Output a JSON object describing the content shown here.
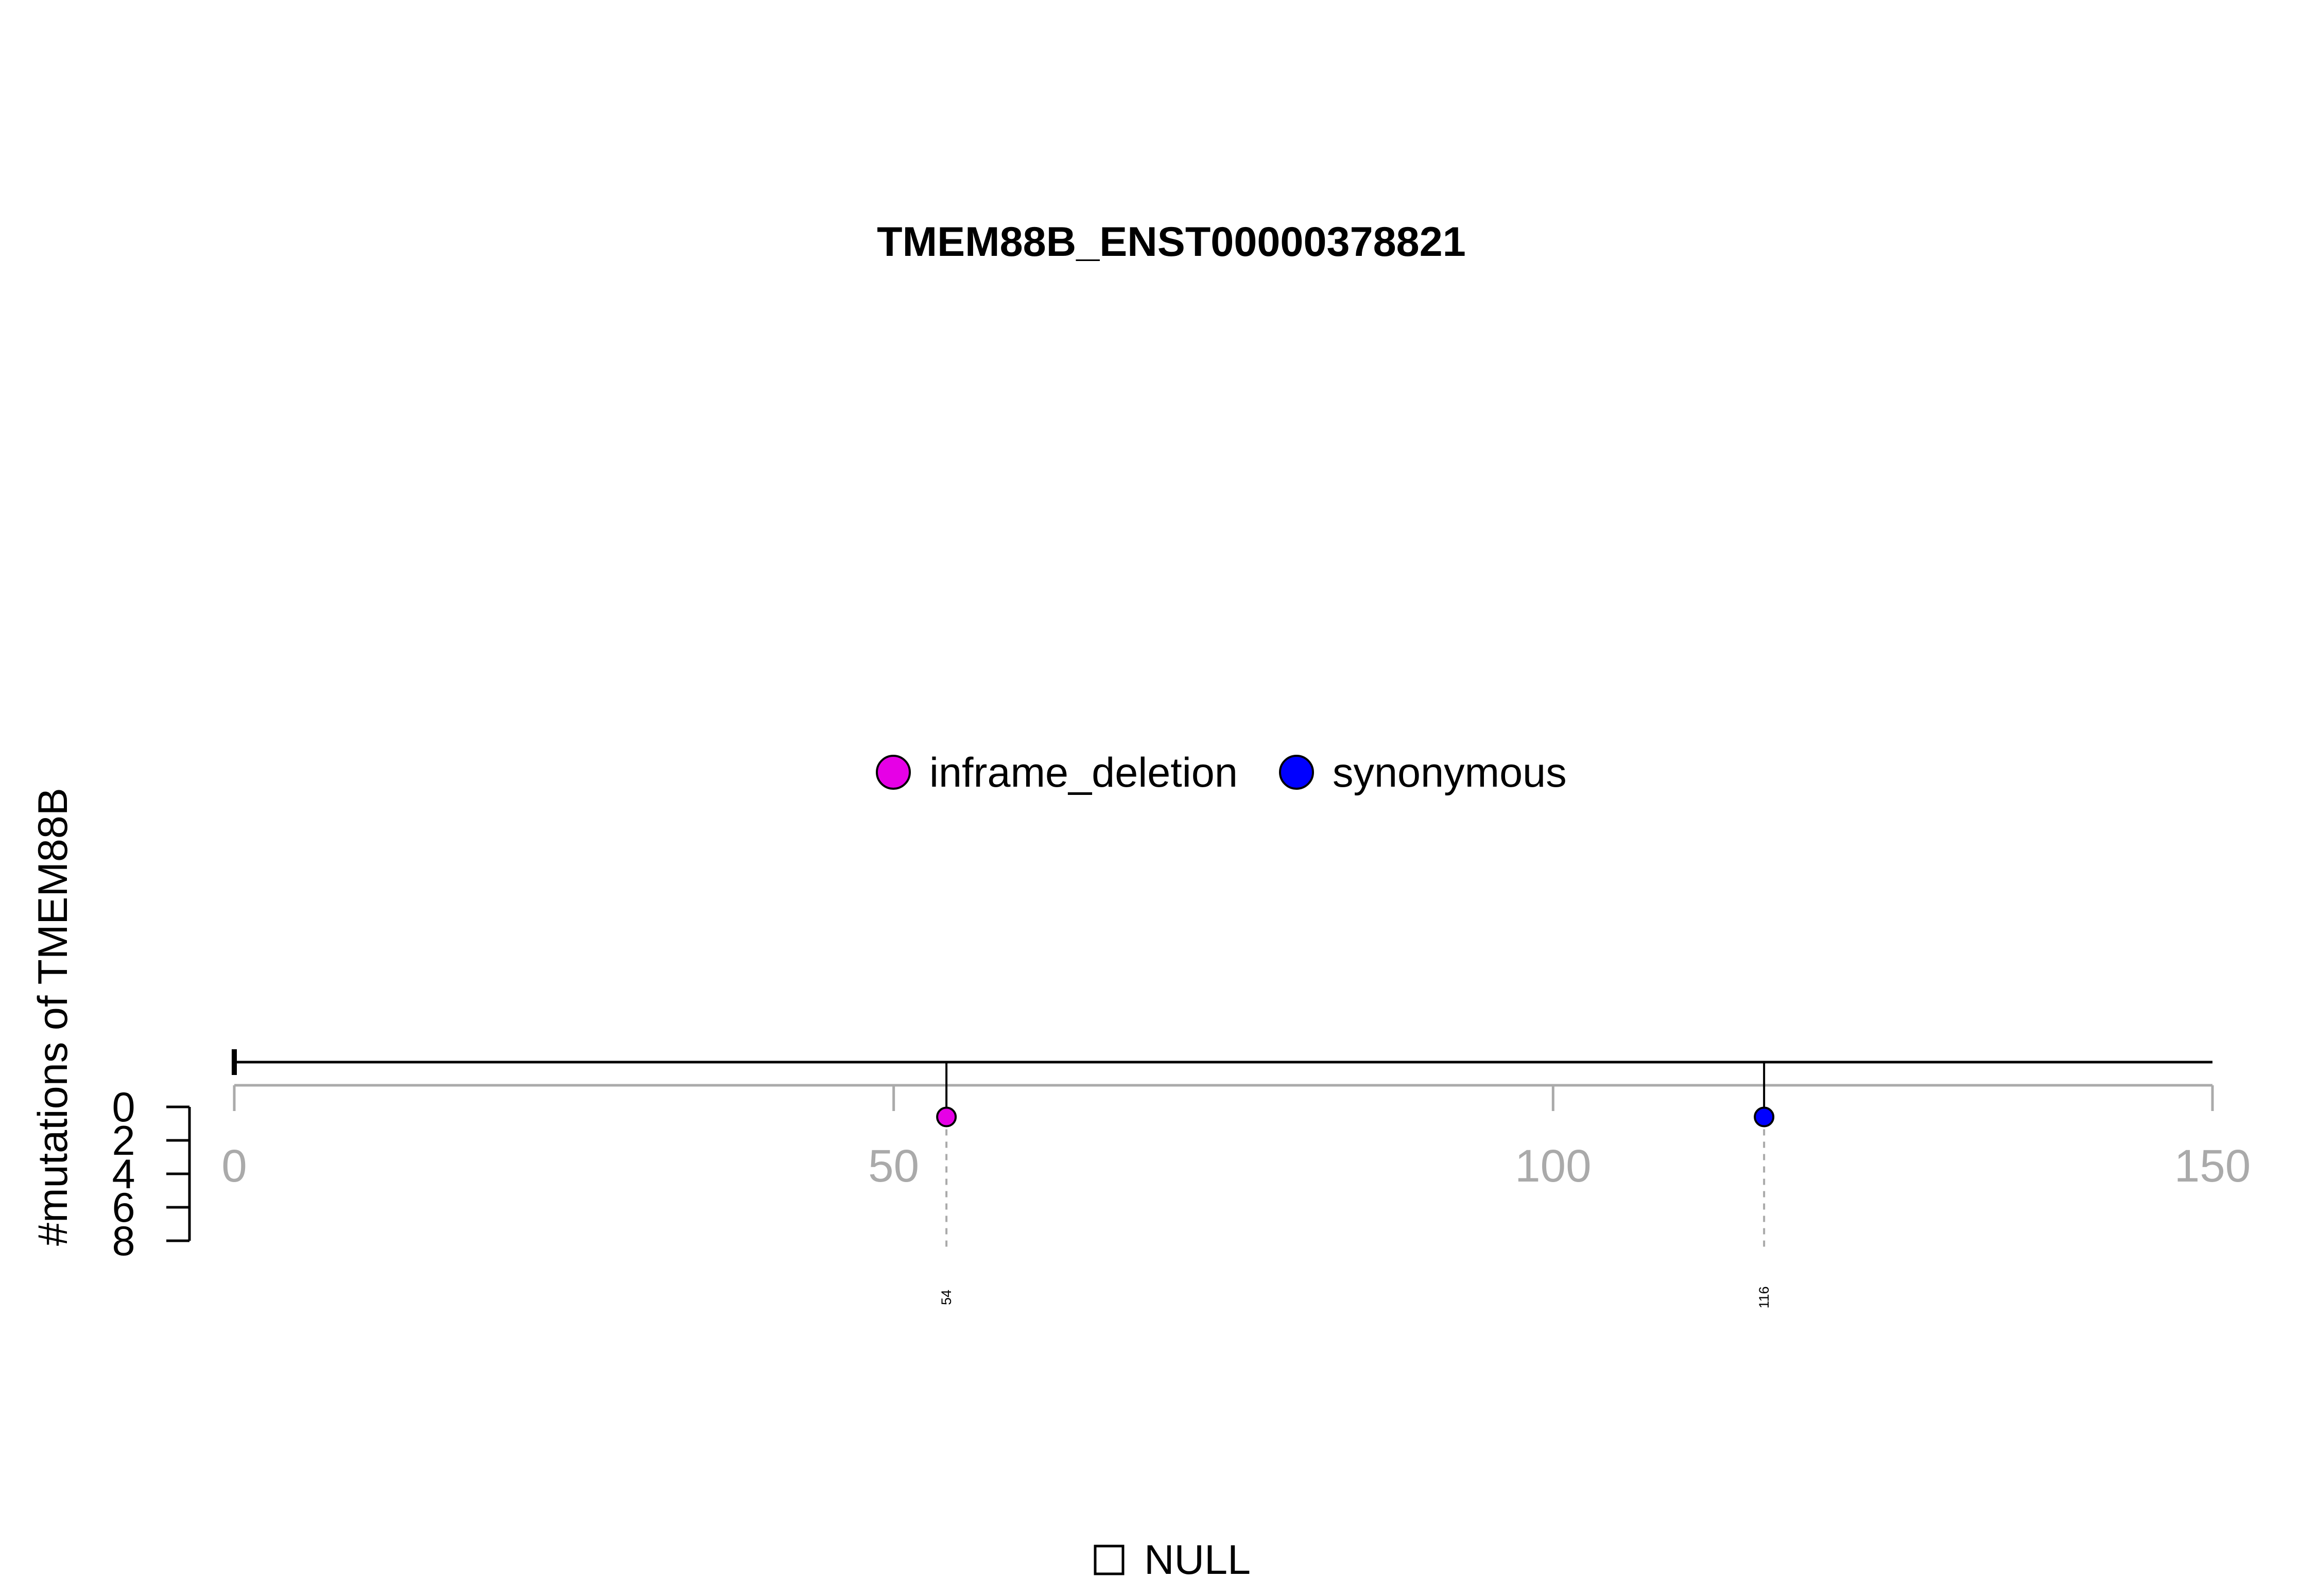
{
  "chart_data": {
    "type": "lollipop",
    "title": "TMEM88B_ENST00000378821",
    "ylabel": "#mutations of TMEM88B",
    "xlim": [
      0,
      150
    ],
    "x_ticks": [
      0,
      50,
      100,
      150
    ],
    "x_tick_labels": [
      "0",
      "50",
      "100",
      "150"
    ],
    "y_ticks": [
      0,
      2,
      4,
      6,
      8
    ],
    "y_tick_labels": [
      "0",
      "2",
      "4",
      "6",
      "8"
    ],
    "ylim": [
      0,
      8
    ],
    "legend": [
      {
        "name": "inframe_deletion",
        "color": "#e600e6"
      },
      {
        "name": "synonymous",
        "color": "#0000ff"
      }
    ],
    "mutations": [
      {
        "position": 54,
        "label": "54",
        "count": 1,
        "type": "inframe_deletion",
        "color": "#e600e6"
      },
      {
        "position": 116,
        "label": "116",
        "count": 1,
        "type": "synonymous",
        "color": "#0000ff"
      }
    ],
    "domain_legend": [
      {
        "name": "NULL",
        "color": "#ffffff"
      }
    ]
  }
}
